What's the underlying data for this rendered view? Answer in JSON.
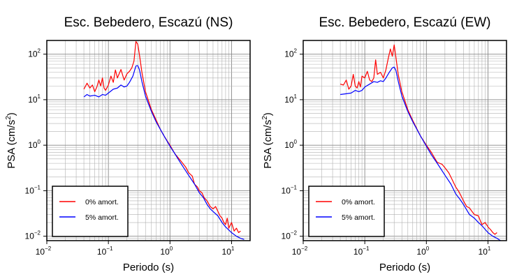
{
  "chart_data": [
    {
      "type": "line",
      "title": "Esc. Bebedero, Escazú (NS)",
      "xlabel": "Periodo (s)",
      "ylabel_main": "PSA (cm/s",
      "ylabel_sup": "2",
      "ylabel_tail": ")",
      "xscale": "log",
      "yscale": "log",
      "xlim": [
        0.01,
        20
      ],
      "ylim": [
        0.008,
        200
      ],
      "grid": true,
      "legend_position": "bottom-left",
      "x_ticks": [
        {
          "base": "10",
          "exp": "−2"
        },
        {
          "base": "10",
          "exp": "−1"
        },
        {
          "base": "10",
          "exp": "0"
        },
        {
          "base": "10",
          "exp": "1"
        }
      ],
      "y_ticks": [
        {
          "base": "10",
          "exp": "−2"
        },
        {
          "base": "10",
          "exp": "−1"
        },
        {
          "base": "10",
          "exp": "0"
        },
        {
          "base": "10",
          "exp": "1"
        },
        {
          "base": "10",
          "exp": "2"
        }
      ],
      "series": [
        {
          "name": "0% amort.",
          "color": "#ff0000",
          "points": [
            [
              0.04,
              17
            ],
            [
              0.045,
              23
            ],
            [
              0.05,
              18
            ],
            [
              0.055,
              21
            ],
            [
              0.06,
              15
            ],
            [
              0.065,
              19
            ],
            [
              0.07,
              27
            ],
            [
              0.075,
              20
            ],
            [
              0.08,
              30
            ],
            [
              0.085,
              18
            ],
            [
              0.09,
              16
            ],
            [
              0.1,
              21
            ],
            [
              0.11,
              33
            ],
            [
              0.12,
              24
            ],
            [
              0.13,
              45
            ],
            [
              0.14,
              30
            ],
            [
              0.16,
              46
            ],
            [
              0.18,
              27
            ],
            [
              0.2,
              37
            ],
            [
              0.22,
              42
            ],
            [
              0.24,
              50
            ],
            [
              0.26,
              70
            ],
            [
              0.28,
              190
            ],
            [
              0.3,
              165
            ],
            [
              0.32,
              95
            ],
            [
              0.35,
              40
            ],
            [
              0.4,
              15
            ],
            [
              0.5,
              6
            ],
            [
              0.6,
              3.5
            ],
            [
              0.7,
              2.2
            ],
            [
              0.8,
              1.6
            ],
            [
              1.0,
              1.0
            ],
            [
              1.2,
              0.65
            ],
            [
              1.5,
              0.45
            ],
            [
              1.8,
              0.33
            ],
            [
              2.0,
              0.25
            ],
            [
              2.3,
              0.21
            ],
            [
              2.5,
              0.14
            ],
            [
              2.8,
              0.12
            ],
            [
              3.0,
              0.1
            ],
            [
              3.3,
              0.09
            ],
            [
              3.6,
              0.07
            ],
            [
              4.0,
              0.06
            ],
            [
              4.5,
              0.045
            ],
            [
              5.0,
              0.04
            ],
            [
              5.5,
              0.045
            ],
            [
              6.0,
              0.035
            ],
            [
              6.5,
              0.028
            ],
            [
              7.0,
              0.025
            ],
            [
              7.5,
              0.02
            ],
            [
              8.0,
              0.018
            ],
            [
              8.5,
              0.025
            ],
            [
              9.0,
              0.015
            ],
            [
              10.0,
              0.02
            ],
            [
              11.0,
              0.013
            ],
            [
              12.0,
              0.015
            ],
            [
              13.0,
              0.012
            ],
            [
              14.0,
              0.013
            ]
          ]
        },
        {
          "name": "5% amort.",
          "color": "#0000ff",
          "points": [
            [
              0.04,
              11.5
            ],
            [
              0.045,
              13
            ],
            [
              0.05,
              12
            ],
            [
              0.06,
              12.5
            ],
            [
              0.07,
              11.5
            ],
            [
              0.08,
              13
            ],
            [
              0.09,
              12.5
            ],
            [
              0.1,
              14
            ],
            [
              0.12,
              17
            ],
            [
              0.14,
              18
            ],
            [
              0.16,
              21
            ],
            [
              0.18,
              19
            ],
            [
              0.2,
              20
            ],
            [
              0.22,
              24
            ],
            [
              0.25,
              33
            ],
            [
              0.28,
              55
            ],
            [
              0.3,
              56
            ],
            [
              0.32,
              45
            ],
            [
              0.35,
              25
            ],
            [
              0.4,
              12
            ],
            [
              0.5,
              5.5
            ],
            [
              0.6,
              3.2
            ],
            [
              0.8,
              1.6
            ],
            [
              1.0,
              0.95
            ],
            [
              1.2,
              0.65
            ],
            [
              1.5,
              0.4
            ],
            [
              2.0,
              0.22
            ],
            [
              2.5,
              0.14
            ],
            [
              3.0,
              0.09
            ],
            [
              3.5,
              0.07
            ],
            [
              4.0,
              0.05
            ],
            [
              4.5,
              0.04
            ],
            [
              5.0,
              0.035
            ],
            [
              6.0,
              0.028
            ],
            [
              7.0,
              0.02
            ],
            [
              8.0,
              0.016
            ],
            [
              10.0,
              0.012
            ],
            [
              12.0,
              0.01
            ],
            [
              14.0,
              0.009
            ],
            [
              16.0,
              0.0085
            ]
          ]
        }
      ]
    },
    {
      "type": "line",
      "title": "Esc. Bebedero, Escazú (EW)",
      "xlabel": "Periodo (s)",
      "ylabel_main": "PSA (cm/s",
      "ylabel_sup": "2",
      "ylabel_tail": ")",
      "xscale": "log",
      "yscale": "log",
      "xlim": [
        0.01,
        20
      ],
      "ylim": [
        0.008,
        200
      ],
      "grid": true,
      "legend_position": "bottom-left",
      "x_ticks": [
        {
          "base": "10",
          "exp": "−2"
        },
        {
          "base": "10",
          "exp": "−1"
        },
        {
          "base": "10",
          "exp": "0"
        },
        {
          "base": "10",
          "exp": "1"
        }
      ],
      "y_ticks": [
        {
          "base": "10",
          "exp": "−2"
        },
        {
          "base": "10",
          "exp": "−1"
        },
        {
          "base": "10",
          "exp": "0"
        },
        {
          "base": "10",
          "exp": "1"
        },
        {
          "base": "10",
          "exp": "2"
        }
      ],
      "series": [
        {
          "name": "0% amort.",
          "color": "#ff0000",
          "points": [
            [
              0.04,
              22
            ],
            [
              0.045,
              21
            ],
            [
              0.05,
              27
            ],
            [
              0.055,
              17
            ],
            [
              0.06,
              20
            ],
            [
              0.065,
              36
            ],
            [
              0.07,
              20
            ],
            [
              0.075,
              18
            ],
            [
              0.08,
              25
            ],
            [
              0.085,
              19
            ],
            [
              0.09,
              33
            ],
            [
              0.1,
              30
            ],
            [
              0.11,
              42
            ],
            [
              0.12,
              27
            ],
            [
              0.13,
              25
            ],
            [
              0.14,
              30
            ],
            [
              0.15,
              75
            ],
            [
              0.16,
              36
            ],
            [
              0.18,
              40
            ],
            [
              0.2,
              30
            ],
            [
              0.22,
              45
            ],
            [
              0.24,
              80
            ],
            [
              0.26,
              130
            ],
            [
              0.28,
              90
            ],
            [
              0.3,
              160
            ],
            [
              0.32,
              85
            ],
            [
              0.35,
              35
            ],
            [
              0.4,
              15
            ],
            [
              0.5,
              6
            ],
            [
              0.6,
              3.5
            ],
            [
              0.8,
              1.6
            ],
            [
              1.0,
              1.0
            ],
            [
              1.2,
              0.7
            ],
            [
              1.5,
              0.42
            ],
            [
              1.8,
              0.38
            ],
            [
              2.0,
              0.32
            ],
            [
              2.3,
              0.25
            ],
            [
              2.5,
              0.2
            ],
            [
              3.0,
              0.12
            ],
            [
              3.3,
              0.1
            ],
            [
              3.6,
              0.08
            ],
            [
              4.0,
              0.06
            ],
            [
              4.5,
              0.045
            ],
            [
              5.0,
              0.042
            ],
            [
              5.5,
              0.035
            ],
            [
              6.0,
              0.03
            ],
            [
              7.0,
              0.028
            ],
            [
              7.5,
              0.022
            ],
            [
              8.0,
              0.018
            ],
            [
              9.0,
              0.02
            ],
            [
              10.0,
              0.016
            ],
            [
              11.0,
              0.014
            ],
            [
              12.0,
              0.012
            ],
            [
              13.0,
              0.011
            ],
            [
              14.0,
              0.012
            ]
          ]
        },
        {
          "name": "5% amort.",
          "color": "#0000ff",
          "points": [
            [
              0.04,
              13
            ],
            [
              0.05,
              13.5
            ],
            [
              0.06,
              14
            ],
            [
              0.07,
              16
            ],
            [
              0.08,
              15
            ],
            [
              0.09,
              16
            ],
            [
              0.1,
              19
            ],
            [
              0.12,
              22
            ],
            [
              0.14,
              25
            ],
            [
              0.16,
              24
            ],
            [
              0.18,
              26
            ],
            [
              0.2,
              25
            ],
            [
              0.22,
              30
            ],
            [
              0.25,
              40
            ],
            [
              0.28,
              50
            ],
            [
              0.3,
              52
            ],
            [
              0.32,
              44
            ],
            [
              0.35,
              25
            ],
            [
              0.4,
              12
            ],
            [
              0.5,
              5.5
            ],
            [
              0.6,
              3.3
            ],
            [
              0.8,
              1.6
            ],
            [
              1.0,
              0.95
            ],
            [
              1.2,
              0.62
            ],
            [
              1.5,
              0.4
            ],
            [
              2.0,
              0.22
            ],
            [
              2.5,
              0.14
            ],
            [
              3.0,
              0.085
            ],
            [
              3.5,
              0.065
            ],
            [
              4.0,
              0.05
            ],
            [
              5.0,
              0.03
            ],
            [
              6.0,
              0.025
            ],
            [
              7.0,
              0.02
            ],
            [
              8.0,
              0.017
            ],
            [
              10.0,
              0.012
            ],
            [
              12.0,
              0.01
            ],
            [
              14.0,
              0.009
            ],
            [
              16.0,
              0.008
            ]
          ]
        }
      ]
    }
  ]
}
